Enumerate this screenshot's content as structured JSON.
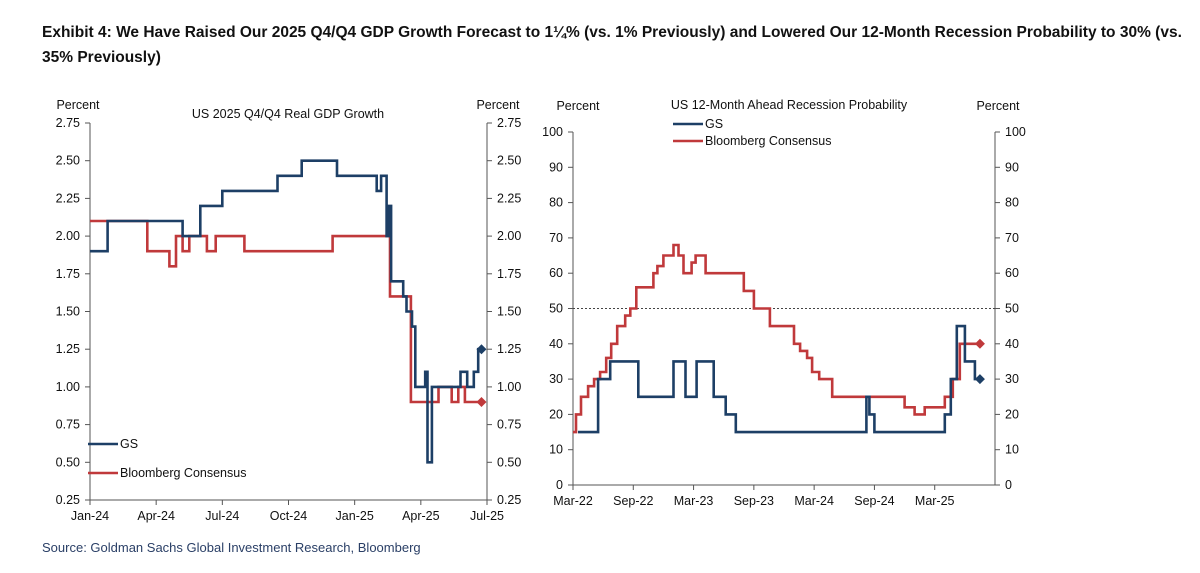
{
  "exhibit": {
    "title": "Exhibit 4: We Have Raised Our 2025 Q4/Q4 GDP Growth Forecast to 1¼% (vs. 1% Previously) and Lowered Our 12-Month Recession Probability to 30% (vs. 35% Previously)",
    "source": "Source: Goldman Sachs Global Investment Research, Bloomberg"
  },
  "colors": {
    "gs": "#1d3f66",
    "consensus": "#c0393b",
    "axis": "#555555"
  },
  "chart_data": [
    {
      "type": "line",
      "title": "US 2025 Q4/Q4 Real GDP Growth",
      "ylabel_left": "Percent",
      "ylabel_right": "Percent",
      "ylim": [
        0.25,
        2.75
      ],
      "yticks": [
        0.25,
        0.5,
        0.75,
        1.0,
        1.25,
        1.5,
        1.75,
        2.0,
        2.25,
        2.5,
        2.75
      ],
      "ytick_labels": [
        "0.25",
        "0.50",
        "0.75",
        "1.00",
        "1.25",
        "1.50",
        "1.75",
        "2.00",
        "2.25",
        "2.50",
        "2.75"
      ],
      "xlim": [
        0,
        18
      ],
      "xticks": [
        0,
        3,
        6,
        9,
        12,
        15,
        18
      ],
      "xtick_labels": [
        "Jan-24",
        "Apr-24",
        "Jul-24",
        "Oct-24",
        "Jan-25",
        "Apr-25",
        "Jul-25"
      ],
      "legend": [
        "GS",
        "Bloomberg Consensus"
      ],
      "legend_position": "bottom-left",
      "series": [
        {
          "name": "GS",
          "x": [
            0,
            0.8,
            0.8,
            4.2,
            4.2,
            5.0,
            5.0,
            6.0,
            6.0,
            8.5,
            8.5,
            9.0,
            9.0,
            9.6,
            9.6,
            11.2,
            11.2,
            11.6,
            11.6,
            13.0,
            13.0,
            13.2,
            13.2,
            13.45,
            13.45,
            13.55,
            13.55,
            13.65,
            13.65,
            14.2,
            14.2,
            14.35,
            14.35,
            14.6,
            14.6,
            14.75,
            14.75,
            15.2,
            15.2,
            15.3,
            15.3,
            15.5,
            15.5,
            16.6,
            16.6,
            16.8,
            16.8,
            17.1,
            17.1,
            17.4,
            17.4,
            17.6,
            17.6,
            17.75
          ],
          "y": [
            1.9,
            1.9,
            2.1,
            2.1,
            2.0,
            2.0,
            2.2,
            2.2,
            2.3,
            2.3,
            2.4,
            2.4,
            2.4,
            2.4,
            2.5,
            2.5,
            2.4,
            2.4,
            2.4,
            2.4,
            2.3,
            2.3,
            2.4,
            2.4,
            2.0,
            2.0,
            2.2,
            2.2,
            1.7,
            1.7,
            1.6,
            1.6,
            1.5,
            1.5,
            1.4,
            1.4,
            1.0,
            1.0,
            1.1,
            1.1,
            0.5,
            0.5,
            1.0,
            1.0,
            1.0,
            1.0,
            1.1,
            1.1,
            1.0,
            1.0,
            1.1,
            1.1,
            1.25,
            1.25
          ],
          "end_marker": {
            "x": 17.75,
            "y": 1.25
          }
        },
        {
          "name": "Bloomberg Consensus",
          "x": [
            0,
            2.6,
            2.6,
            3.6,
            3.6,
            3.9,
            3.9,
            4.2,
            4.2,
            4.5,
            4.5,
            5.3,
            5.3,
            5.7,
            5.7,
            7.0,
            7.0,
            11.0,
            11.0,
            13.6,
            13.6,
            14.55,
            14.55,
            15.6,
            15.6,
            15.8,
            15.8,
            16.4,
            16.4,
            16.7,
            16.7,
            17.0,
            17.0,
            17.75
          ],
          "y": [
            2.1,
            2.1,
            1.9,
            1.9,
            1.8,
            1.8,
            2.0,
            2.0,
            1.9,
            1.9,
            2.0,
            2.0,
            1.9,
            1.9,
            2.0,
            2.0,
            1.9,
            1.9,
            2.0,
            2.0,
            1.6,
            1.6,
            0.9,
            0.9,
            0.9,
            0.9,
            1.0,
            1.0,
            0.9,
            0.9,
            1.0,
            1.0,
            0.9,
            0.9
          ],
          "end_marker": {
            "x": 17.75,
            "y": 0.9
          }
        }
      ]
    },
    {
      "type": "line",
      "title": "US 12-Month Ahead Recession Probability",
      "ylabel_left": "Percent",
      "ylabel_right": "Percent",
      "ylim": [
        0,
        100
      ],
      "yticks": [
        0,
        10,
        20,
        30,
        40,
        50,
        60,
        70,
        80,
        90,
        100
      ],
      "ytick_labels": [
        "0",
        "10",
        "20",
        "30",
        "40",
        "50",
        "60",
        "70",
        "80",
        "90",
        "100"
      ],
      "xlim": [
        0,
        42
      ],
      "xticks": [
        0,
        6,
        12,
        18,
        24,
        30,
        36
      ],
      "xtick_labels": [
        "Mar-22",
        "Sep-22",
        "Mar-23",
        "Sep-23",
        "Mar-24",
        "Sep-24",
        "Mar-25"
      ],
      "reference_line": 50,
      "legend": [
        "GS",
        "Bloomberg Consensus"
      ],
      "legend_position": "top-left",
      "series": [
        {
          "name": "GS",
          "x": [
            0.5,
            2.5,
            2.5,
            3.7,
            3.7,
            6.5,
            6.5,
            10.0,
            10.0,
            11.2,
            11.2,
            12.3,
            12.3,
            14.0,
            14.0,
            15.2,
            15.2,
            16.2,
            16.2,
            17.0,
            17.0,
            29.2,
            29.2,
            29.5,
            29.5,
            30.0,
            30.0,
            32.0,
            32.0,
            37.0,
            37.0,
            37.6,
            37.6,
            38.2,
            38.2,
            39.0,
            39.0,
            39.5,
            39.5,
            40.0,
            40.0,
            40.5
          ],
          "y": [
            15,
            15,
            30,
            30,
            35,
            35,
            25,
            25,
            35,
            35,
            25,
            25,
            35,
            35,
            25,
            25,
            20,
            20,
            15,
            15,
            15,
            15,
            25,
            25,
            20,
            20,
            15,
            15,
            15,
            15,
            20,
            20,
            30,
            30,
            45,
            45,
            35,
            35,
            35,
            35,
            30,
            30
          ],
          "end_marker": {
            "x": 40.5,
            "y": 30
          }
        },
        {
          "name": "Bloomberg Consensus",
          "x": [
            0,
            0.3,
            0.3,
            0.8,
            0.8,
            1.5,
            1.5,
            2.1,
            2.1,
            2.7,
            2.7,
            3.3,
            3.3,
            3.8,
            3.8,
            4.4,
            4.4,
            5.2,
            5.2,
            5.7,
            5.7,
            6.3,
            6.3,
            8.0,
            8.0,
            8.4,
            8.4,
            9.0,
            9.0,
            10.0,
            10.0,
            10.5,
            10.5,
            11.0,
            11.0,
            11.8,
            11.8,
            12.2,
            12.2,
            13.2,
            13.2,
            17.0,
            17.0,
            18.0,
            18.0,
            19.6,
            19.6,
            22.0,
            22.0,
            22.6,
            22.6,
            23.3,
            23.3,
            23.8,
            23.8,
            24.5,
            24.5,
            25.1,
            25.1,
            25.8,
            25.8,
            33.0,
            33.0,
            34.0,
            34.0,
            35.0,
            35.0,
            37.0,
            37.0,
            37.8,
            37.8,
            38.5,
            38.5,
            39.0,
            39.0,
            40.5
          ],
          "y": [
            15,
            15,
            20,
            20,
            25,
            25,
            28,
            28,
            30,
            30,
            32,
            32,
            36,
            36,
            40,
            40,
            45,
            45,
            48,
            48,
            50,
            50,
            56,
            56,
            60,
            60,
            62,
            62,
            65,
            65,
            68,
            68,
            65,
            65,
            60,
            60,
            63,
            63,
            65,
            65,
            60,
            60,
            55,
            55,
            50,
            50,
            45,
            45,
            40,
            40,
            38,
            38,
            36,
            36,
            32,
            32,
            30,
            30,
            30,
            30,
            25,
            25,
            22,
            22,
            20,
            20,
            22,
            22,
            25,
            25,
            30,
            30,
            40,
            40,
            40,
            40
          ],
          "end_marker": {
            "x": 40.5,
            "y": 40
          }
        }
      ]
    }
  ]
}
